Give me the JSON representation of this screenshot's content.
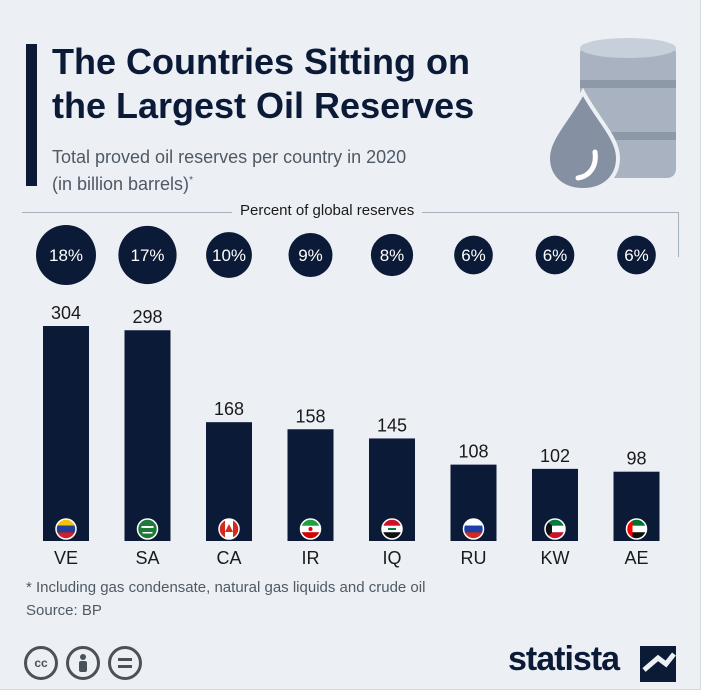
{
  "header": {
    "title_line1": "The Countries Sitting on",
    "title_line2": "the Largest Oil Reserves",
    "subtitle_line1": "Total proved oil reserves per country in 2020",
    "subtitle_line2": "(in billion barrels)",
    "subtitle_mark": "*"
  },
  "pct_label": "Percent of global reserves",
  "chart_data": {
    "type": "bar",
    "title": "The Countries Sitting on the Largest Oil Reserves",
    "subtitle": "Total proved oil reserves per country in 2020 (in billion barrels)*",
    "categories": [
      "VE",
      "SA",
      "CA",
      "IR",
      "IQ",
      "RU",
      "KW",
      "AE"
    ],
    "values": [
      304,
      298,
      168,
      158,
      145,
      108,
      102,
      98
    ],
    "percent_labels": [
      "18%",
      "17%",
      "10%",
      "9%",
      "8%",
      "6%",
      "6%",
      "6%"
    ],
    "percent_values": [
      18,
      17,
      10,
      9,
      8,
      6,
      6,
      6
    ],
    "flags": [
      "venezuela",
      "saudi-arabia",
      "canada",
      "iran",
      "iraq",
      "russia",
      "kuwait",
      "uae"
    ],
    "ylabel": "billion barrels",
    "ylim": [
      0,
      304
    ],
    "grid": false,
    "bar_color": "#0b1a36"
  },
  "footer": {
    "footnote": "* Including gas condensate, natural gas liquids and crude oil",
    "source": "Source: BP",
    "license_icons": [
      "cc",
      "by",
      "nd"
    ],
    "brand": "statista"
  },
  "colors": {
    "navy": "#0b1a36",
    "background": "#ecf0f5",
    "text_gray": "#4f5964"
  }
}
